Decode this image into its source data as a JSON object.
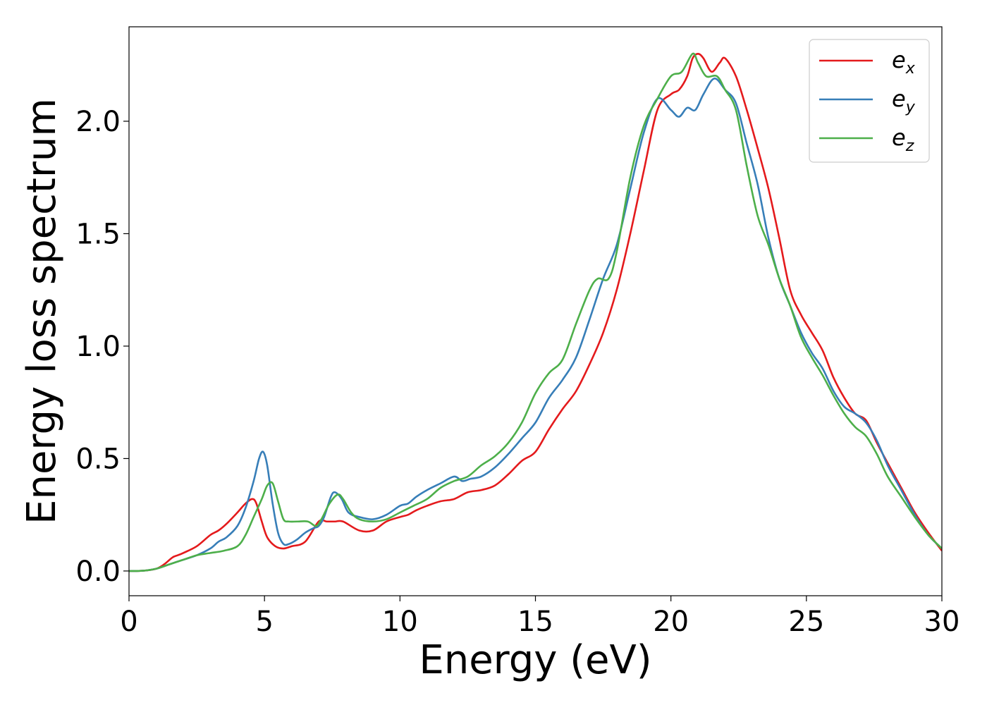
{
  "chart_data": {
    "type": "line",
    "title": "",
    "xlabel": "Energy (eV)",
    "ylabel": "Energy loss spectrum",
    "xlim": [
      0,
      30
    ],
    "ylim": [
      -0.11,
      2.42
    ],
    "xticks": [
      0,
      5,
      10,
      15,
      20,
      25,
      30
    ],
    "xtick_labels": [
      "0",
      "5",
      "10",
      "15",
      "20",
      "25",
      "30"
    ],
    "yticks": [
      0.0,
      0.5,
      1.0,
      1.5,
      2.0
    ],
    "ytick_labels": [
      "0.0",
      "0.5",
      "1.0",
      "1.5",
      "2.0"
    ],
    "grid": false,
    "legend_position": "top-right",
    "series": [
      {
        "name": "e",
        "subscript": "x",
        "color": "#e41a1c",
        "x": [
          0,
          0.5,
          1.0,
          1.3,
          1.6,
          1.8,
          2.0,
          2.5,
          3.0,
          3.3,
          3.6,
          4.0,
          4.3,
          4.55,
          4.7,
          4.9,
          5.1,
          5.4,
          5.7,
          6.0,
          6.5,
          7.0,
          7.3,
          7.6,
          7.9,
          8.5,
          9.0,
          9.5,
          10.0,
          10.3,
          10.6,
          11.0,
          11.5,
          12.0,
          12.5,
          13.0,
          13.5,
          14.0,
          14.5,
          15.0,
          15.5,
          16.0,
          16.5,
          17.0,
          17.5,
          18.0,
          18.5,
          19.0,
          19.5,
          20.0,
          20.3,
          20.6,
          20.8,
          21.0,
          21.2,
          21.5,
          21.8,
          22.0,
          22.4,
          22.8,
          23.2,
          23.6,
          24.0,
          24.4,
          24.8,
          25.2,
          25.6,
          26.0,
          26.4,
          26.8,
          27.2,
          27.6,
          28.0,
          28.5,
          29.0,
          29.5,
          30.0
        ],
        "y": [
          0,
          0.001,
          0.01,
          0.03,
          0.06,
          0.07,
          0.08,
          0.11,
          0.16,
          0.18,
          0.21,
          0.26,
          0.3,
          0.32,
          0.3,
          0.22,
          0.15,
          0.11,
          0.1,
          0.11,
          0.13,
          0.22,
          0.22,
          0.22,
          0.22,
          0.18,
          0.18,
          0.22,
          0.24,
          0.25,
          0.27,
          0.29,
          0.31,
          0.32,
          0.35,
          0.36,
          0.38,
          0.43,
          0.49,
          0.53,
          0.63,
          0.72,
          0.8,
          0.92,
          1.06,
          1.25,
          1.5,
          1.78,
          2.05,
          2.12,
          2.14,
          2.2,
          2.28,
          2.3,
          2.28,
          2.22,
          2.26,
          2.28,
          2.2,
          2.05,
          1.88,
          1.7,
          1.48,
          1.25,
          1.14,
          1.06,
          0.98,
          0.86,
          0.77,
          0.7,
          0.67,
          0.57,
          0.48,
          0.37,
          0.26,
          0.17,
          0.09
        ]
      },
      {
        "name": "e",
        "subscript": "y",
        "color": "#377eb8",
        "x": [
          0,
          0.5,
          1.0,
          1.5,
          2.0,
          2.5,
          3.0,
          3.3,
          3.6,
          4.0,
          4.3,
          4.6,
          4.8,
          4.95,
          5.1,
          5.3,
          5.5,
          5.7,
          5.9,
          6.2,
          6.5,
          6.8,
          7.0,
          7.2,
          7.45,
          7.6,
          7.85,
          8.1,
          8.5,
          9.0,
          9.5,
          10.0,
          10.3,
          10.6,
          11.0,
          11.5,
          12.0,
          12.3,
          12.6,
          13.0,
          13.5,
          14.0,
          14.5,
          15.0,
          15.5,
          16.0,
          16.5,
          17.0,
          17.5,
          18.0,
          18.5,
          19.0,
          19.5,
          20.0,
          20.3,
          20.6,
          20.9,
          21.2,
          21.6,
          22.0,
          22.4,
          22.8,
          23.2,
          23.6,
          24.0,
          24.4,
          24.8,
          25.2,
          25.6,
          26.0,
          26.4,
          26.8,
          27.2,
          27.6,
          28.0,
          28.5,
          29.0,
          29.5,
          30.0
        ],
        "y": [
          0,
          0.001,
          0.01,
          0.03,
          0.05,
          0.07,
          0.1,
          0.13,
          0.15,
          0.2,
          0.28,
          0.4,
          0.5,
          0.53,
          0.47,
          0.3,
          0.17,
          0.12,
          0.12,
          0.14,
          0.17,
          0.19,
          0.2,
          0.24,
          0.33,
          0.35,
          0.32,
          0.26,
          0.24,
          0.23,
          0.25,
          0.29,
          0.3,
          0.33,
          0.36,
          0.39,
          0.42,
          0.4,
          0.41,
          0.42,
          0.46,
          0.52,
          0.59,
          0.66,
          0.77,
          0.85,
          0.95,
          1.12,
          1.3,
          1.45,
          1.7,
          1.95,
          2.1,
          2.05,
          2.02,
          2.06,
          2.05,
          2.12,
          2.19,
          2.14,
          2.08,
          1.9,
          1.72,
          1.48,
          1.3,
          1.18,
          1.06,
          0.97,
          0.9,
          0.8,
          0.73,
          0.7,
          0.66,
          0.58,
          0.47,
          0.36,
          0.25,
          0.16,
          0.1
        ]
      },
      {
        "name": "e",
        "subscript": "z",
        "color": "#4daf4a",
        "x": [
          0,
          0.5,
          1.0,
          1.5,
          2.0,
          2.5,
          3.0,
          3.5,
          4.0,
          4.3,
          4.6,
          4.9,
          5.1,
          5.3,
          5.5,
          5.7,
          5.9,
          6.2,
          6.6,
          6.9,
          7.1,
          7.4,
          7.7,
          7.9,
          8.2,
          8.5,
          9.0,
          9.5,
          10.0,
          10.5,
          11.0,
          11.5,
          12.0,
          12.5,
          13.0,
          13.5,
          14.0,
          14.5,
          15.0,
          15.5,
          16.0,
          16.5,
          17.0,
          17.3,
          17.7,
          18.0,
          18.5,
          19.0,
          19.5,
          20.0,
          20.4,
          20.8,
          21.0,
          21.3,
          21.7,
          22.0,
          22.4,
          22.8,
          23.2,
          23.6,
          24.0,
          24.4,
          24.8,
          25.2,
          25.6,
          26.0,
          26.4,
          26.8,
          27.2,
          27.6,
          28.0,
          28.5,
          29.0,
          29.5,
          30.0
        ],
        "y": [
          0,
          0.001,
          0.01,
          0.03,
          0.05,
          0.07,
          0.08,
          0.09,
          0.11,
          0.16,
          0.24,
          0.32,
          0.38,
          0.39,
          0.31,
          0.23,
          0.22,
          0.22,
          0.22,
          0.2,
          0.23,
          0.3,
          0.34,
          0.32,
          0.26,
          0.23,
          0.22,
          0.23,
          0.26,
          0.29,
          0.32,
          0.37,
          0.4,
          0.42,
          0.47,
          0.51,
          0.57,
          0.66,
          0.79,
          0.88,
          0.94,
          1.1,
          1.25,
          1.3,
          1.3,
          1.42,
          1.75,
          1.98,
          2.1,
          2.2,
          2.22,
          2.3,
          2.26,
          2.2,
          2.2,
          2.14,
          2.05,
          1.8,
          1.58,
          1.45,
          1.3,
          1.18,
          1.04,
          0.95,
          0.87,
          0.78,
          0.7,
          0.64,
          0.6,
          0.52,
          0.42,
          0.33,
          0.24,
          0.16,
          0.1
        ]
      }
    ]
  }
}
